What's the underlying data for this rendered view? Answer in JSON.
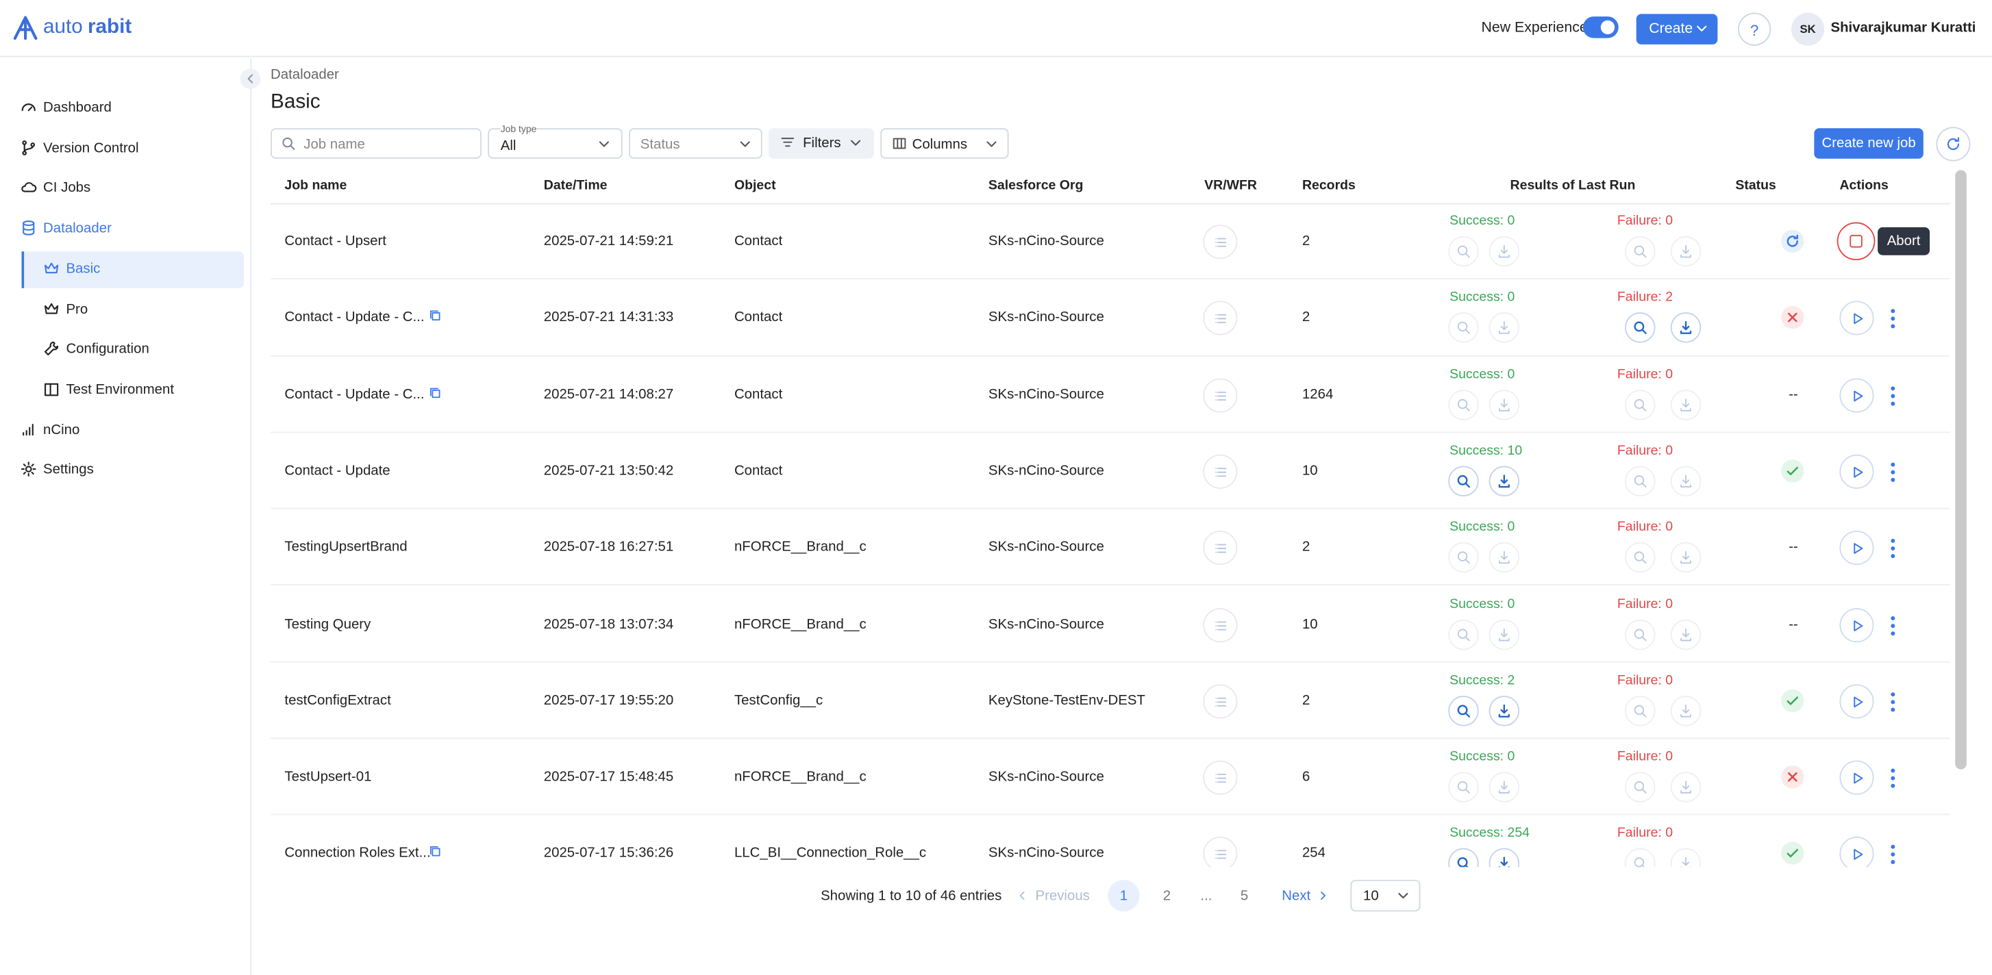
{
  "header": {
    "logo_light": "auto",
    "logo_bold": "rabit",
    "new_experience": "New Experience",
    "create": "Create",
    "help": "?",
    "user_initials": "SK",
    "user_name": "Shivarajkumar Kuratti"
  },
  "sidebar": {
    "items": [
      {
        "label": "Dashboard",
        "icon": "gauge"
      },
      {
        "label": "Version Control",
        "icon": "branch"
      },
      {
        "label": "CI Jobs",
        "icon": "cloud"
      },
      {
        "label": "Dataloader",
        "icon": "db",
        "open": true,
        "children": [
          {
            "label": "Basic",
            "icon": "crown",
            "active": true
          },
          {
            "label": "Pro",
            "icon": "crown"
          },
          {
            "label": "Configuration",
            "icon": "wrench"
          },
          {
            "label": "Test Environment",
            "icon": "book"
          }
        ]
      },
      {
        "label": "nCino",
        "icon": "bars"
      },
      {
        "label": "Settings",
        "icon": "gear"
      }
    ]
  },
  "breadcrumb": "Dataloader",
  "title": "Basic",
  "toolbar": {
    "search_placeholder": "Job name",
    "job_type_label": "Job type",
    "job_type_value": "All",
    "status_placeholder": "Status",
    "filters": "Filters",
    "columns": "Columns",
    "create_job": "Create new job"
  },
  "table": {
    "columns": [
      "Job name",
      "Date/Time",
      "Object",
      "Salesforce Org",
      "VR/WFR",
      "Records",
      "Results of Last Run",
      "Status",
      "Actions"
    ],
    "rows": [
      {
        "name": "Contact - Upsert",
        "date": "2025-07-21 14:59:21",
        "object": "Contact",
        "org": "SKs-nCino-Source",
        "records": 2,
        "success": "Success: 0",
        "failure": "Failure: 0",
        "status_icon": "running",
        "running": true
      },
      {
        "name": "Contact - Update - C...",
        "copy": true,
        "date": "2025-07-21 14:31:33",
        "object": "Contact",
        "org": "SKs-nCino-Source",
        "records": 2,
        "success": "Success: 0",
        "failure": "Failure: 2",
        "failure_active": true,
        "status_icon": "failed"
      },
      {
        "name": "Contact - Update - C...",
        "copy": true,
        "date": "2025-07-21 14:08:27",
        "object": "Contact",
        "org": "SKs-nCino-Source",
        "records": 1264,
        "success": "Success: 0",
        "failure": "Failure: 0",
        "status_text": "--"
      },
      {
        "name": "Contact - Update",
        "date": "2025-07-21 13:50:42",
        "object": "Contact",
        "org": "SKs-nCino-Source",
        "records": 10,
        "success": "Success: 10",
        "success_active": true,
        "failure": "Failure: 0",
        "status_icon": "success"
      },
      {
        "name": "TestingUpsertBrand",
        "date": "2025-07-18 16:27:51",
        "object": "nFORCE__Brand__c",
        "org": "SKs-nCino-Source",
        "records": 2,
        "success": "Success: 0",
        "failure": "Failure: 0",
        "status_text": "--"
      },
      {
        "name": "Testing Query",
        "date": "2025-07-18 13:07:34",
        "object": "nFORCE__Brand__c",
        "org": "SKs-nCino-Source",
        "records": 10,
        "success": "Success: 0",
        "failure": "Failure: 0",
        "status_text": "--"
      },
      {
        "name": "testConfigExtract",
        "date": "2025-07-17 19:55:20",
        "object": "TestConfig__c",
        "org": "KeyStone-TestEnv-DEST",
        "records": 2,
        "success": "Success: 2",
        "success_active": true,
        "failure": "Failure: 0",
        "status_icon": "success"
      },
      {
        "name": "TestUpsert-01",
        "date": "2025-07-17 15:48:45",
        "object": "nFORCE__Brand__c",
        "org": "SKs-nCino-Source",
        "records": 6,
        "success": "Success: 0",
        "failure": "Failure: 0",
        "status_icon": "failed"
      },
      {
        "name": "Connection Roles Ext...",
        "copy": true,
        "date": "2025-07-17 15:36:26",
        "object": "LLC_BI__Connection_Role__c",
        "org": "SKs-nCino-Source",
        "records": 254,
        "success": "Success: 254",
        "success_active": true,
        "failure": "Failure: 0",
        "status_icon": "success"
      }
    ]
  },
  "tooltip": "Abort",
  "pagination": {
    "summary": "Showing 1 to 10 of 46 entries",
    "previous": "Previous",
    "pages": [
      1,
      2,
      "...",
      5
    ],
    "current": 1,
    "next": "Next",
    "page_size": 10
  }
}
